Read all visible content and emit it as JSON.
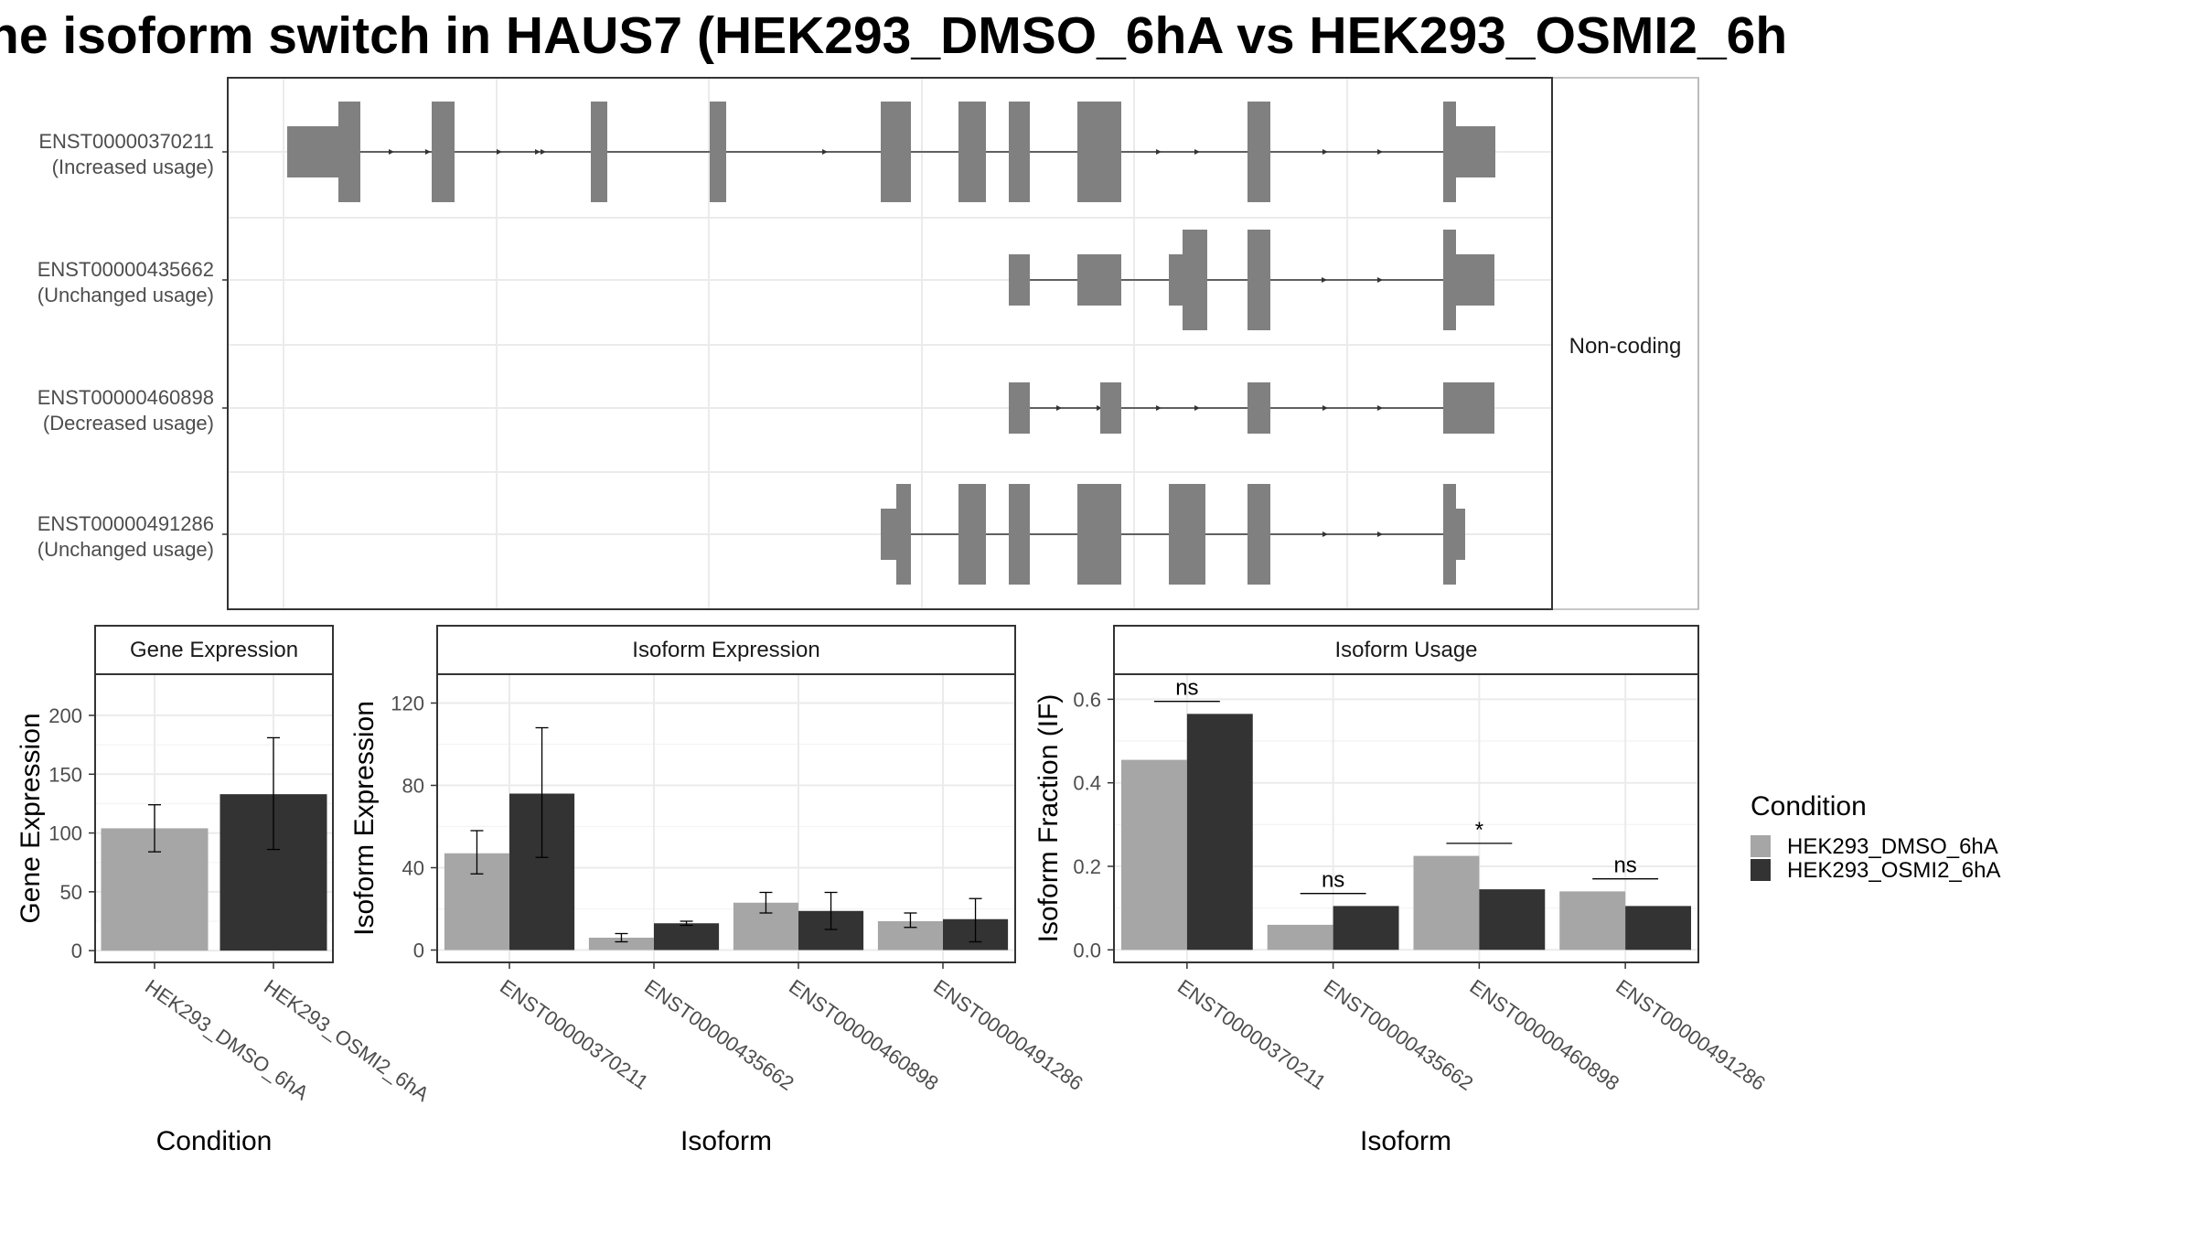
{
  "chart_data": {
    "title": "ne isoform switch in HAUS7 (HEK293_DMSO_6hA vs HEK293_OSMI2_6h",
    "structure": {
      "type": "gene-structure",
      "strip_label": "Non-coding",
      "isoforms": [
        {
          "id": "ENST00000370211",
          "usage": "(Increased usage)"
        },
        {
          "id": "ENST00000435662",
          "usage": "(Unchanged usage)"
        },
        {
          "id": "ENST00000460898",
          "usage": "(Decreased usage)"
        },
        {
          "id": "ENST00000491286",
          "usage": "(Unchanged usage)"
        }
      ]
    },
    "panels": [
      {
        "type": "bar",
        "strip": "Gene Expression",
        "ylabel": "Gene Expression",
        "xlabel": "Condition",
        "ylim": [
          -10,
          235
        ],
        "yticks": [
          0,
          50,
          100,
          150,
          200
        ],
        "categories": [
          "HEK293_DMSO_6hA",
          "HEK293_OSMI2_6hA"
        ],
        "series": [
          {
            "values": [
              104,
              133
            ],
            "err_low": [
              84,
              86
            ],
            "err_high": [
              124,
              181
            ]
          }
        ],
        "colors_by_category": true
      },
      {
        "type": "bar",
        "strip": "Isoform Expression",
        "ylabel": "Isoform Expression",
        "xlabel": "Isoform",
        "ylim": [
          -6,
          134
        ],
        "yticks": [
          0,
          40,
          80,
          120
        ],
        "categories": [
          "ENST00000370211",
          "ENST00000435662",
          "ENST00000460898",
          "ENST00000491286"
        ],
        "series": [
          {
            "name": "HEK293_DMSO_6hA",
            "values": [
              47,
              6,
              23,
              14
            ],
            "err_low": [
              37,
              4,
              18,
              11
            ],
            "err_high": [
              58,
              8,
              28,
              18
            ]
          },
          {
            "name": "HEK293_OSMI2_6hA",
            "values": [
              76,
              13,
              19,
              15
            ],
            "err_low": [
              45,
              12,
              10,
              4
            ],
            "err_high": [
              108,
              14,
              28,
              25
            ]
          }
        ]
      },
      {
        "type": "bar",
        "strip": "Isoform Usage",
        "ylabel": "Isoform Fraction (IF)",
        "xlabel": "Isoform",
        "ylim": [
          -0.03,
          0.66
        ],
        "yticks": [
          0.0,
          0.2,
          0.4,
          0.6
        ],
        "ytick_labels": [
          "0.0",
          "0.2",
          "0.4",
          "0.6"
        ],
        "categories": [
          "ENST00000370211",
          "ENST00000435662",
          "ENST00000460898",
          "ENST00000491286"
        ],
        "series": [
          {
            "name": "HEK293_DMSO_6hA",
            "values": [
              0.455,
              0.06,
              0.225,
              0.14
            ]
          },
          {
            "name": "HEK293_OSMI2_6hA",
            "values": [
              0.565,
              0.105,
              0.145,
              0.105
            ]
          }
        ],
        "significance": [
          {
            "label": "ns",
            "y": 0.595
          },
          {
            "label": "ns",
            "y": 0.135
          },
          {
            "label": "*",
            "y": 0.255
          },
          {
            "label": "ns",
            "y": 0.17
          }
        ]
      }
    ],
    "legend": {
      "title": "Condition",
      "position": "right",
      "items": [
        {
          "label": "HEK293_DMSO_6hA",
          "color": "#a6a6a6"
        },
        {
          "label": "HEK293_OSMI2_6hA",
          "color": "#333333"
        }
      ]
    },
    "colors": {
      "dmso": "#a6a6a6",
      "osmi": "#333333",
      "exon": "#808080",
      "panel_border": "#333333"
    }
  }
}
